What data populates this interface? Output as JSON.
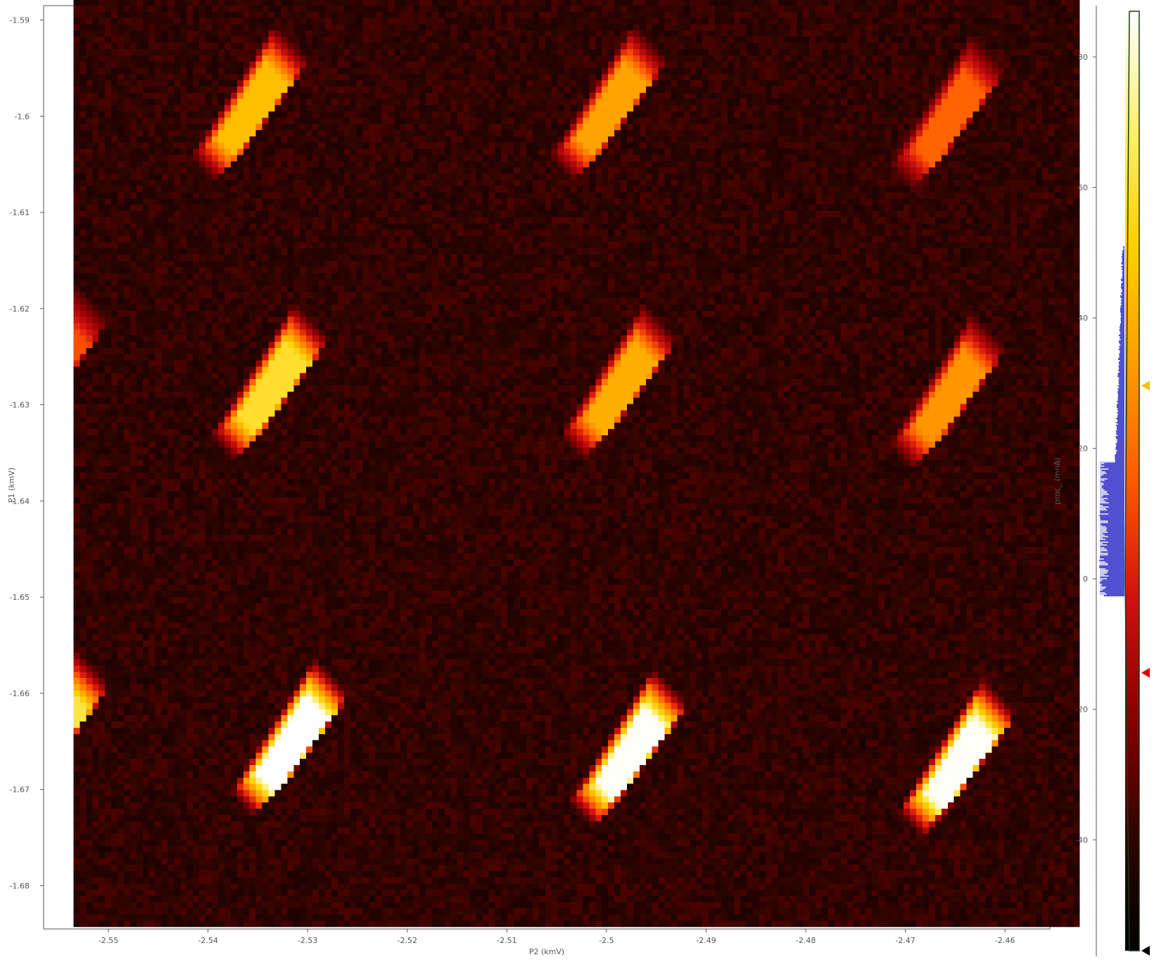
{
  "chart_data": {
    "type": "heatmap",
    "title": "",
    "xlabel": "P2 (kmV)",
    "ylabel": "P1 (kmV)",
    "colorbar_label": "proc_ (mnA)",
    "xlim": [
      -2.5565,
      -2.4555
    ],
    "ylim": [
      -1.6845,
      -1.5885
    ],
    "x_ticks": [
      -2.55,
      -2.54,
      -2.53,
      -2.52,
      -2.51,
      -2.5,
      -2.49,
      -2.48,
      -2.47,
      -2.46
    ],
    "x_tick_labels": [
      "-2.55",
      "-2.54",
      "-2.53",
      "-2.52",
      "-2.51",
      "-2.5",
      "-2.49",
      "-2.48",
      "-2.47",
      "-2.46"
    ],
    "y_ticks": [
      -1.59,
      -1.6,
      -1.61,
      -1.62,
      -1.63,
      -1.64,
      -1.65,
      -1.66,
      -1.67,
      -1.68
    ],
    "y_tick_labels": [
      "-1.59",
      "-1.6",
      "-1.61",
      "-1.62",
      "-1.63",
      "-1.64",
      "-1.65",
      "-1.66",
      "-1.67",
      "-1.68"
    ],
    "data_extent": {
      "x": [
        -2.5535,
        -2.4525
      ],
      "y": [
        -1.5872,
        -1.6843
      ]
    },
    "colorbar": {
      "range": [
        -57,
        87
      ],
      "ticks": [
        80,
        60,
        40,
        20,
        0,
        -20,
        -40
      ],
      "tick_labels": [
        "80",
        "60",
        "40",
        "20",
        "0",
        "-20",
        "-40"
      ],
      "level_markers": [
        {
          "value": 29.6,
          "color": "#f2c200"
        },
        {
          "value": -14.4,
          "color": "#e00000"
        },
        {
          "value": -57.0,
          "color": "#000000"
        }
      ],
      "colormap": [
        "#000000",
        "#300400",
        "#8a0000",
        "#d01010",
        "#ff5a00",
        "#ff9c00",
        "#ffd000",
        "#fff070",
        "#ffffff"
      ],
      "histogram_color": "#5050d0",
      "histogram_range": [
        -2.5,
        51
      ]
    },
    "background_level": 0.12,
    "features": [
      {
        "x": -2.5355,
        "y": -1.5995,
        "intensity": 0.62
      },
      {
        "x": -2.4995,
        "y": -1.5995,
        "intensity": 0.55
      },
      {
        "x": -2.4655,
        "y": -1.6005,
        "intensity": 0.42
      },
      {
        "x": -2.5335,
        "y": -1.6285,
        "intensity": 0.72
      },
      {
        "x": -2.4985,
        "y": -1.6285,
        "intensity": 0.58
      },
      {
        "x": -2.4655,
        "y": -1.6295,
        "intensity": 0.52
      },
      {
        "x": -2.5315,
        "y": -1.6655,
        "intensity": 0.97
      },
      {
        "x": -2.4975,
        "y": -1.6665,
        "intensity": 0.92
      },
      {
        "x": -2.4645,
        "y": -1.6675,
        "intensity": 0.92
      },
      {
        "x": -2.5555,
        "y": -1.6645,
        "intensity": 0.75
      },
      {
        "x": -2.5555,
        "y": -1.6265,
        "intensity": 0.38
      }
    ]
  }
}
